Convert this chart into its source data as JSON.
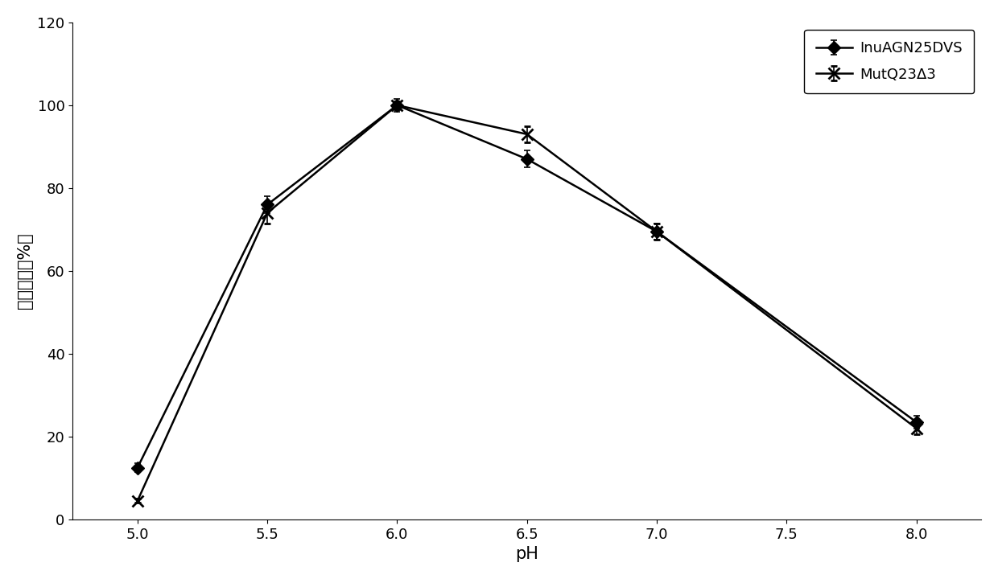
{
  "series1_label": "InuAGN25DVS",
  "series2_label": "MutQ23Δ3",
  "x": [
    5.0,
    5.5,
    6.0,
    6.5,
    7.0,
    8.0
  ],
  "series1_y": [
    12.5,
    76.0,
    100.0,
    87.0,
    69.5,
    23.5
  ],
  "series2_y": [
    4.5,
    74.0,
    100.0,
    93.0,
    69.5,
    22.0
  ],
  "series1_yerr": [
    1.0,
    2.0,
    1.5,
    2.0,
    2.0,
    1.5
  ],
  "series2_yerr": [
    0.5,
    2.5,
    1.0,
    2.0,
    2.0,
    1.5
  ],
  "xlabel": "pH",
  "ylabel": "相对酶活（%）",
  "xlim": [
    4.75,
    8.25
  ],
  "ylim": [
    0,
    120
  ],
  "yticks": [
    0,
    20,
    40,
    60,
    80,
    100,
    120
  ],
  "xticks": [
    5.0,
    5.5,
    6.0,
    6.5,
    7.0,
    7.5,
    8.0
  ],
  "line_color": "#000000",
  "marker1": "D",
  "marker2": "x",
  "markersize1": 8,
  "markersize2": 10,
  "linewidth": 1.8,
  "capsize": 3,
  "legend_fontsize": 13,
  "axis_fontsize": 15,
  "tick_fontsize": 13
}
